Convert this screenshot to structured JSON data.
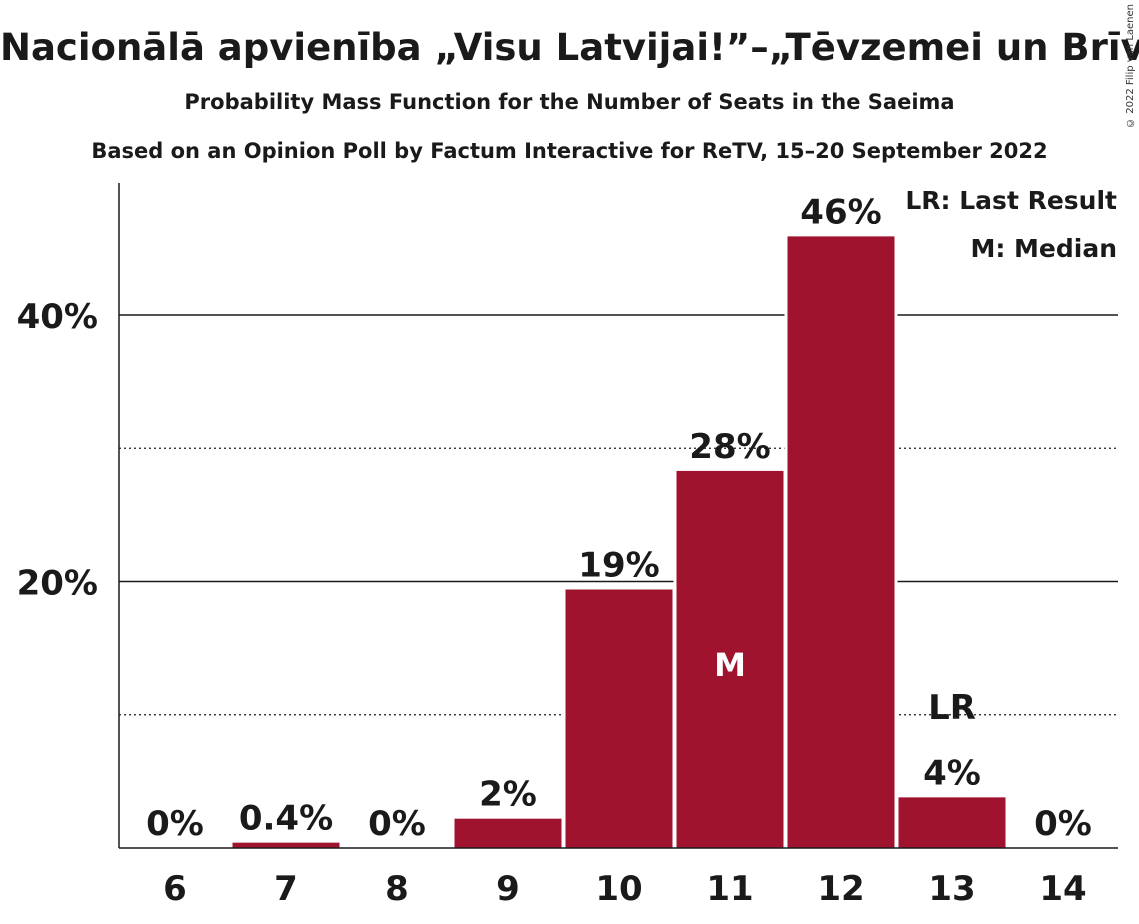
{
  "title": "Nacionālā apvienība „Visu Latvijai!”–„Tēvzemei un Brīvībai/LNNK”",
  "subtitle": "Probability Mass Function for the Number of Seats in the Saeima",
  "source": "Based on an Opinion Poll by Factum Interactive for ReTV, 15–20 September 2022",
  "copyright": "© 2022 Filip van Laenen",
  "legend": {
    "last_result": "LR: Last Result",
    "median": "M: Median"
  },
  "colors": {
    "bar": "#A0132F",
    "text": "#1a1a1a",
    "grid": "#1a1a1a"
  },
  "chart_data": {
    "type": "bar",
    "categories": [
      "6",
      "7",
      "8",
      "9",
      "10",
      "11",
      "12",
      "13",
      "14"
    ],
    "values": [
      0,
      0.4,
      0,
      2.2,
      19.4,
      28.3,
      45.9,
      3.8,
      0
    ],
    "value_labels": [
      "0%",
      "0.4%",
      "0%",
      "2%",
      "19%",
      "28%",
      "46%",
      "4%",
      "0%"
    ],
    "median_category": "11",
    "median_label": "M",
    "last_result_category": "13",
    "last_result_label": "LR",
    "yticks": [
      20,
      40
    ],
    "ytick_labels": [
      "20%",
      "40%"
    ],
    "minor_gridlines": [
      10,
      30
    ],
    "ylim": [
      0,
      50
    ],
    "legend_position": "top-right"
  }
}
